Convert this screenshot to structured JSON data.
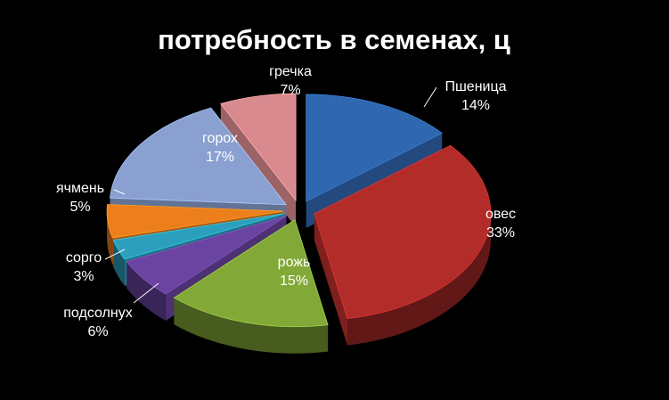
{
  "chart_data": {
    "type": "pie",
    "title": "потребность в семенах, ц",
    "slices": [
      {
        "name": "Пшеница",
        "value": 14,
        "percent_label": "14%",
        "color": "#2f67b0"
      },
      {
        "name": "овес",
        "value": 33,
        "percent_label": "33%",
        "color": "#b22c2a"
      },
      {
        "name": "рожь",
        "value": 15,
        "percent_label": "15%",
        "color": "#82a838"
      },
      {
        "name": "подсолнух",
        "value": 6,
        "percent_label": "6%",
        "color": "#6a44a0"
      },
      {
        "name": "сорго",
        "value": 3,
        "percent_label": "3%",
        "color": "#2b9fbb"
      },
      {
        "name": "ячмень",
        "value": 5,
        "percent_label": "5%",
        "color": "#ec7e1c"
      },
      {
        "name": "горох",
        "value": 17,
        "percent_label": "17%",
        "color": "#8aa0d0"
      },
      {
        "name": "гречка",
        "value": 7,
        "percent_label": "7%",
        "color": "#d98a8e"
      }
    ],
    "exploded": true,
    "three_d": true,
    "legend": "none",
    "background": "#000000"
  }
}
